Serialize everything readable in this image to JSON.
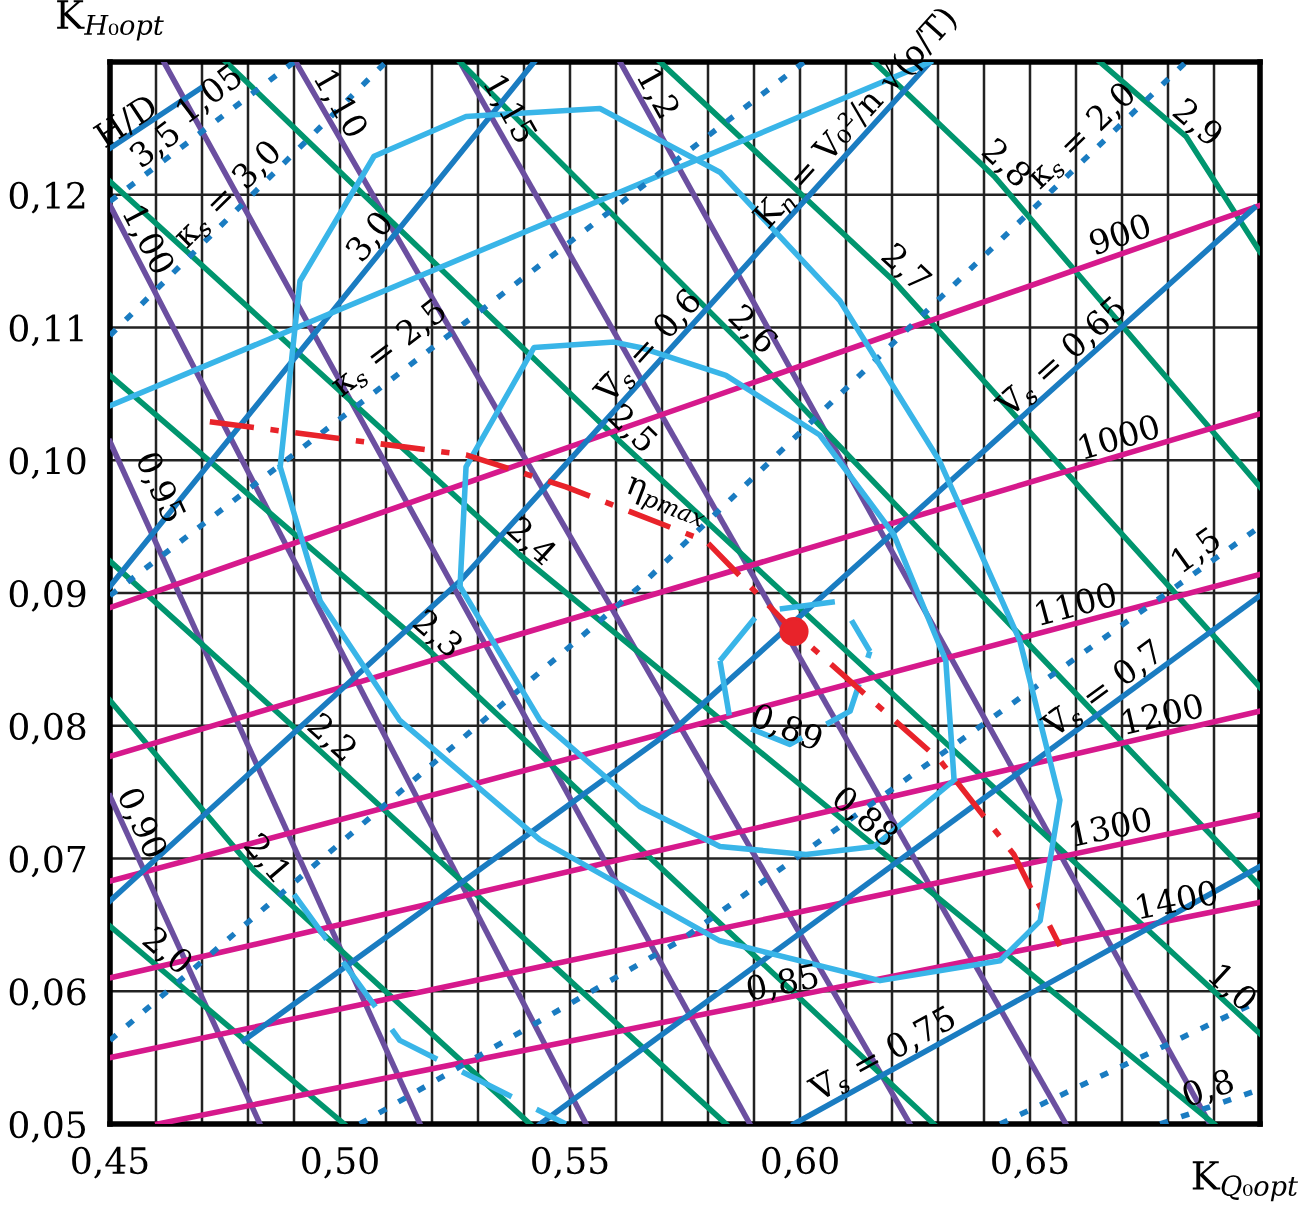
{
  "chart_data": {
    "type": "line",
    "xlabel": "K$_{Q₀opt}$",
    "ylabel": "K$_{H₀opt}$",
    "xlim": [
      0.45,
      0.7
    ],
    "ylim": [
      0.05,
      0.13
    ],
    "xticks": [
      {
        "value": 0.45,
        "label": "0,45"
      },
      {
        "value": 0.46,
        "label": null
      },
      {
        "value": 0.47,
        "label": null
      },
      {
        "value": 0.48,
        "label": null
      },
      {
        "value": 0.49,
        "label": null
      },
      {
        "value": 0.5,
        "label": "0,50"
      },
      {
        "value": 0.51,
        "label": null
      },
      {
        "value": 0.52,
        "label": null
      },
      {
        "value": 0.53,
        "label": null
      },
      {
        "value": 0.54,
        "label": null
      },
      {
        "value": 0.55,
        "label": "0,55"
      },
      {
        "value": 0.56,
        "label": null
      },
      {
        "value": 0.57,
        "label": null
      },
      {
        "value": 0.58,
        "label": null
      },
      {
        "value": 0.59,
        "label": null
      },
      {
        "value": 0.6,
        "label": "0,60"
      },
      {
        "value": 0.61,
        "label": null
      },
      {
        "value": 0.62,
        "label": null
      },
      {
        "value": 0.63,
        "label": null
      },
      {
        "value": 0.64,
        "label": null
      },
      {
        "value": 0.65,
        "label": "0,65"
      },
      {
        "value": 0.66,
        "label": null
      },
      {
        "value": 0.67,
        "label": null
      },
      {
        "value": 0.68,
        "label": null
      },
      {
        "value": 0.69,
        "label": null
      },
      {
        "value": 0.7,
        "label": null
      }
    ],
    "yticks": [
      {
        "value": 0.05,
        "label": "0,05"
      },
      {
        "value": 0.06,
        "label": "0,06"
      },
      {
        "value": 0.07,
        "label": "0,07"
      },
      {
        "value": 0.08,
        "label": "0,08"
      },
      {
        "value": 0.09,
        "label": "0,09"
      },
      {
        "value": 0.1,
        "label": "0,10"
      },
      {
        "value": 0.11,
        "label": "0,11"
      },
      {
        "value": 0.12,
        "label": "0,12"
      },
      {
        "value": 0.13,
        "label": null
      }
    ],
    "grid": true,
    "series": [
      {
        "color": "#6b4fa0",
        "x": [
          0.45,
          0.4826
        ],
        "values": [
          0.0747,
          0.05
        ]
      },
      {
        "color": "#6b4fa0",
        "x": [
          0.45,
          0.5174
        ],
        "values": [
          0.1014,
          0.05
        ]
      },
      {
        "color": "#6b4fa0",
        "x": [
          0.45,
          0.5535
        ],
        "values": [
          0.1192,
          0.05
        ]
      },
      {
        "color": "#6b4fa0",
        "x": [
          0.4617,
          0.5891
        ],
        "values": [
          0.13,
          0.05
        ]
      },
      {
        "color": "#6b4fa0",
        "x": [
          0.4904,
          0.6239
        ],
        "values": [
          0.13,
          0.05
        ]
      },
      {
        "color": "#6b4fa0",
        "x": [
          0.5261,
          0.6578
        ],
        "values": [
          0.13,
          0.05
        ]
      },
      {
        "color": "#6b4fa0",
        "x": [
          0.5609,
          0.6891
        ],
        "values": [
          0.13,
          0.05
        ]
      },
      {
        "color": "#00956e",
        "x": [
          0.45,
          0.5009
        ],
        "values": [
          0.0649,
          0.05
        ]
      },
      {
        "color": "#00956e",
        "x": [
          0.45,
          0.4813,
          0.5413
        ],
        "values": [
          0.0819,
          0.0691,
          0.05
        ]
      },
      {
        "color": "#00956e",
        "x": [
          0.45,
          0.4957,
          0.5839
        ],
        "values": [
          0.0924,
          0.0781,
          0.05
        ]
      },
      {
        "color": "#00956e",
        "x": [
          0.45,
          0.5187,
          0.6291
        ],
        "values": [
          0.1064,
          0.0859,
          0.05
        ]
      },
      {
        "color": "#00956e",
        "x": [
          0.45,
          0.539,
          0.69
        ],
        "values": [
          0.121,
          0.0929,
          0.05
        ]
      },
      {
        "color": "#00956e",
        "x": [
          0.4752,
          0.5609,
          0.7
        ],
        "values": [
          0.13,
          0.1014,
          0.0568
        ]
      },
      {
        "color": "#00956e",
        "x": [
          0.5261,
          0.587,
          0.7
        ],
        "values": [
          0.13,
          0.1089,
          0.0679
        ]
      },
      {
        "color": "#00956e",
        "x": [
          0.5696,
          0.6204,
          0.7
        ],
        "values": [
          0.13,
          0.1135,
          0.0829
        ]
      },
      {
        "color": "#00956e",
        "x": [
          0.6161,
          0.6422,
          0.7
        ],
        "values": [
          0.13,
          0.1214,
          0.098
        ]
      },
      {
        "color": "#00956e",
        "x": [
          0.6652,
          0.6839,
          0.7
        ],
        "values": [
          0.13,
          0.1244,
          0.1157
        ]
      },
      {
        "color": "#d6198c",
        "x": [
          0.45,
          0.7
        ],
        "values": [
          0.0889,
          0.1192
        ]
      },
      {
        "color": "#d6198c",
        "x": [
          0.45,
          0.7
        ],
        "values": [
          0.0777,
          0.1035
        ]
      },
      {
        "color": "#d6198c",
        "x": [
          0.45,
          0.7
        ],
        "values": [
          0.0683,
          0.0914
        ]
      },
      {
        "color": "#d6198c",
        "x": [
          0.45,
          0.7
        ],
        "values": [
          0.061,
          0.0811
        ]
      },
      {
        "color": "#d6198c",
        "x": [
          0.45,
          0.7
        ],
        "values": [
          0.055,
          0.0733
        ]
      },
      {
        "color": "#d6198c",
        "x": [
          0.4604,
          0.7
        ],
        "values": [
          0.05,
          0.0667
        ]
      },
      {
        "color": "#1a7cc1",
        "x": [
          0.45,
          0.5261,
          0.6283
        ],
        "values": [
          0.0668,
          0.0909,
          0.13
        ]
      },
      {
        "color": "#1a7cc1",
        "x": [
          0.4791,
          0.5739,
          0.6987
        ],
        "values": [
          0.0563,
          0.0801,
          0.119
        ]
      },
      {
        "color": "#1a7cc1",
        "x": [
          0.5435,
          0.7
        ],
        "values": [
          0.05,
          0.0898
        ]
      },
      {
        "color": "#1a7cc1",
        "x": [
          0.5987,
          0.7
        ],
        "values": [
          0.05,
          0.0694
        ]
      },
      {
        "color": "#1a7cc1",
        "x": [
          0.45,
          0.5422
        ],
        "values": [
          0.0905,
          0.13
        ]
      },
      {
        "color": "#1a7cc1",
        "x": [
          0.45,
          0.4696
        ],
        "values": [
          0.1235,
          0.128
        ]
      },
      {
        "color": "#39b5e8",
        "x": [
          0.45,
          0.6283
        ],
        "values": [
          0.1041,
          0.13
        ]
      },
      {
        "color": "#1a7cc1",
        "line_style": "dotted",
        "x": [
          0.45,
          0.49
        ],
        "values": [
          0.1195,
          0.13
        ]
      },
      {
        "color": "#1a7cc1",
        "line_style": "dotted",
        "x": [
          0.45,
          0.51
        ],
        "values": [
          0.1094,
          0.13
        ]
      },
      {
        "color": "#1a7cc1",
        "line_style": "dotted",
        "x": [
          0.45,
          0.6009
        ],
        "values": [
          0.0898,
          0.13
        ]
      },
      {
        "color": "#1a7cc1",
        "line_style": "dotted",
        "x": [
          0.45,
          0.5652,
          0.6839
        ],
        "values": [
          0.0563,
          0.0905,
          0.13
        ]
      },
      {
        "color": "#1a7cc1",
        "line_style": "dotted",
        "x": [
          0.5043,
          0.5739,
          0.7
        ],
        "values": [
          0.05,
          0.0638,
          0.095
        ]
      },
      {
        "color": "#1a7cc1",
        "line_style": "dotted",
        "x": [
          0.6435,
          0.7
        ],
        "values": [
          0.05,
          0.0593
        ]
      },
      {
        "color": "#1a7cc1",
        "line_style": "dotted",
        "x": [
          0.6783,
          0.7
        ],
        "values": [
          0.05,
          0.0526
        ]
      },
      {
        "color": "#39b5e8",
        "x": [
          0.5261,
          0.5274,
          0.5422,
          0.5596,
          0.5652,
          0.5839,
          0.6043,
          0.6204,
          0.6317,
          0.6335
        ],
        "values": [
          0.0905,
          0.0995,
          0.1085,
          0.1089,
          0.1085,
          0.1064,
          0.1019,
          0.0944,
          0.0849,
          0.0759
        ]
      },
      {
        "color": "#39b5e8",
        "x": [
          0.5261,
          0.5435,
          0.5652,
          0.5826,
          0.6013,
          0.6161,
          0.6335
        ],
        "values": [
          0.0905,
          0.0804,
          0.0739,
          0.0709,
          0.0703,
          0.0709,
          0.0759
        ]
      },
      {
        "color": "#39b5e8",
        "line_style": "dashed",
        "x": [
          0.5826,
          0.5913,
          0.6087,
          0.6152
        ],
        "values": [
          0.0849,
          0.0886,
          0.0894,
          0.0856
        ]
      },
      {
        "color": "#39b5e8",
        "line_style": "dashed",
        "x": [
          0.5826,
          0.5848,
          0.5978,
          0.6109,
          0.6152
        ],
        "values": [
          0.0849,
          0.0804,
          0.0786,
          0.0811,
          0.0856
        ]
      },
      {
        "color": "#39b5e8",
        "line_style": "dashed",
        "x": [
          0.49,
          0.513,
          0.5491
        ],
        "values": [
          0.0673,
          0.0563,
          0.05
        ]
      },
      {
        "color": "#e8232a",
        "line_style": "dashdot",
        "x": [
          0.4717,
          0.5274,
          0.5491,
          0.5796,
          0.5987,
          0.6304,
          0.6465,
          0.6565
        ],
        "values": [
          0.1029,
          0.1004,
          0.098,
          0.0939,
          0.0871,
          0.0774,
          0.0703,
          0.0634
        ]
      },
      {
        "type": "scatter",
        "color": "#e8232a",
        "marker": "circle",
        "x": [
          0.5987
        ],
        "values": [
          0.0871
        ]
      }
    ],
    "annotations": [
      {
        "text": "0,90",
        "x": 0.4534,
        "y": 0.0721
      },
      {
        "text": "0,95",
        "x": 0.4574,
        "y": 0.0974
      },
      {
        "text": "1,00",
        "x": 0.4548,
        "y": 0.116
      },
      {
        "text": "1,05",
        "x": 0.4739,
        "y": 0.1265
      },
      {
        "text": "1,10",
        "x": 0.4967,
        "y": 0.1262
      },
      {
        "text": "1,15",
        "x": 0.5335,
        "y": 0.1258
      },
      {
        "text": "1,2",
        "x": 0.5657,
        "y": 0.127
      },
      {
        "text": "H/D",
        "x": 0.4557,
        "y": 0.1244
      },
      {
        "text": "2,0",
        "x": 0.46,
        "y": 0.062
      },
      {
        "text": "2,1",
        "x": 0.4813,
        "y": 0.0691
      },
      {
        "text": "2,2",
        "x": 0.4957,
        "y": 0.0781
      },
      {
        "text": "2,3",
        "x": 0.5187,
        "y": 0.0859
      },
      {
        "text": "2,4",
        "x": 0.539,
        "y": 0.0929
      },
      {
        "text": "2,5",
        "x": 0.5609,
        "y": 0.1014
      },
      {
        "text": "2,6",
        "x": 0.587,
        "y": 0.1089
      },
      {
        "text": "2,7",
        "x": 0.6204,
        "y": 0.1135
      },
      {
        "text": "2,8",
        "x": 0.6422,
        "y": 0.1214
      },
      {
        "text": "2,9",
        "x": 0.6839,
        "y": 0.1244
      },
      {
        "text": "900",
        "x": 0.6709,
        "y": 0.1157
      },
      {
        "text": "1000",
        "x": 0.6704,
        "y": 0.1004
      },
      {
        "text": "1100",
        "x": 0.6609,
        "y": 0.0878
      },
      {
        "text": "1200",
        "x": 0.6796,
        "y": 0.0795
      },
      {
        "text": "1300",
        "x": 0.6683,
        "y": 0.071
      },
      {
        "text": "1400",
        "x": 0.6826,
        "y": 0.0655
      },
      {
        "text": "V̄$_{s}$ = 0,6",
        "x": 0.57,
        "y": 0.1077
      },
      {
        "text": "V̄$_{s}$ = 0,65",
        "x": 0.6596,
        "y": 0.1068
      },
      {
        "text": "V̄$_{s}$ = 0,7",
        "x": 0.6683,
        "y": 0.0817
      },
      {
        "text": "V̄$_{s}$ = 0,75",
        "x": 0.62,
        "y": 0.0541
      },
      {
        "text": "3,5",
        "x": 0.4622,
        "y": 0.1227
      },
      {
        "text": "κ$_{s}$ = 3,0",
        "x": 0.4783,
        "y": 0.1191
      },
      {
        "text": "3,0",
        "x": 0.5095,
        "y": 0.116
      },
      {
        "text": "κ$_{s}$ = 2,5",
        "x": 0.513,
        "y": 0.1074
      },
      {
        "text": "κ$_{s}$ = 2,0",
        "x": 0.6639,
        "y": 0.1235
      },
      {
        "text": "1,5",
        "x": 0.6883,
        "y": 0.0921
      },
      {
        "text": "1,0",
        "x": 0.6913,
        "y": 0.0593
      },
      {
        "text": "0,8",
        "x": 0.69,
        "y": 0.0514
      },
      {
        "text": "0,89",
        "x": 0.5957,
        "y": 0.0786
      },
      {
        "text": "0,88",
        "x": 0.6117,
        "y": 0.0721
      },
      {
        "text": "0,85",
        "x": 0.597,
        "y": 0.0593
      },
      {
        "text": "η$_{pmax}$",
        "x": 0.5696,
        "y": 0.0957
      },
      {
        "text": "K$_{n}$ = V₀²/n √(ρ/T)",
        "x": 0.615,
        "y": 0.1249
      }
    ]
  }
}
